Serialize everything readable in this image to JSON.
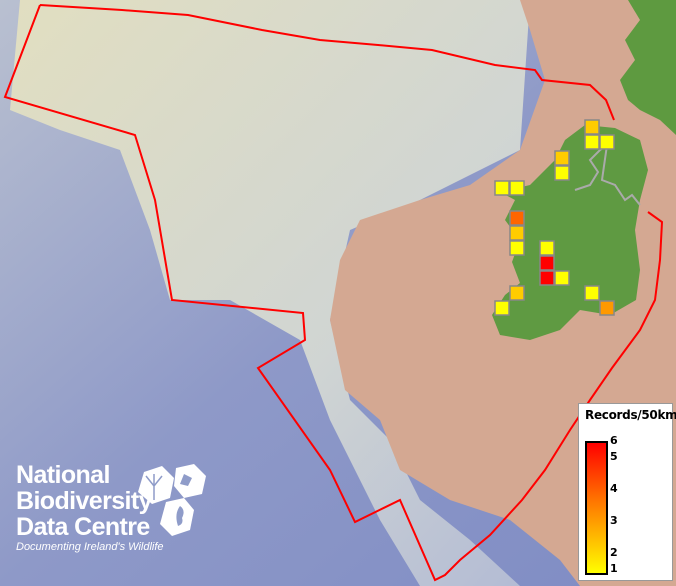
{
  "legend": {
    "title": "Records/50km",
    "ticks": [
      "6",
      "5",
      "4",
      "3",
      "2",
      "1"
    ],
    "min": 1,
    "max": 6,
    "colors": {
      "low": "#ffff00",
      "mid": "#ff9900",
      "high": "#ff0000"
    }
  },
  "records": [
    2,
    1,
    1,
    2,
    1,
    1,
    1,
    4,
    2,
    1,
    1,
    6,
    6,
    1,
    2,
    1,
    1,
    3
  ],
  "logo": {
    "line1": "National",
    "line2": "Biodiversity",
    "line3": "Data Centre",
    "tagline": "Documenting Ireland's Wildlife"
  },
  "colors": {
    "boundary": "#ff0000",
    "land": "#5e9a40",
    "shelf": "#d3a890",
    "ocean": "#8f9cc9"
  }
}
